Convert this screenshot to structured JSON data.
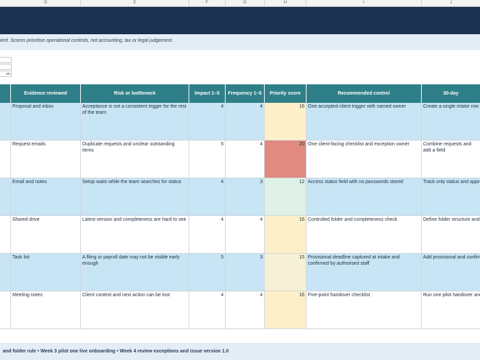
{
  "column_letters": [
    "D",
    "E",
    "F",
    "G",
    "H",
    "I",
    "J"
  ],
  "note": "ient. Scores prioritise operational controls, not accounting, tax or legal judgement.",
  "mini_boxes": [
    "",
    "",
    "an"
  ],
  "headers": {
    "evidence": "Evidence reviewed",
    "risk": "Risk or bottleneck",
    "impact": "Impact 1–5",
    "frequency": "Frequency 1–5",
    "priority": "Priority score",
    "control": "Recommended control",
    "thirty_day": "30-day"
  },
  "rows": [
    {
      "evidence": "Proposal and inbox",
      "risk": "Acceptance is not a consistent trigger for the rest of the team",
      "impact": "4",
      "frequency": "4",
      "priority": "16",
      "priority_color": "#fdf0c8",
      "control": "One accepted-client trigger with named owner",
      "thirty_day": "Create a single intake row wh"
    },
    {
      "evidence": "Request emails",
      "risk": "Duplicate requests and unclear outstanding items",
      "impact": "5",
      "frequency": "4",
      "priority": "20",
      "priority_color": "#e08a80",
      "control": "One client-facing checklist and exception owner",
      "thirty_day": "Combine requests and add a field"
    },
    {
      "evidence": "Email and notes",
      "risk": "Setup waits while the team searches for status",
      "impact": "4",
      "frequency": "3",
      "priority": "12",
      "priority_color": "#dff0e6",
      "control": "Access status field with no passwords stored",
      "thirty_day": "Track only status and approv"
    },
    {
      "evidence": "Shared drive",
      "risk": "Latest version and completeness are hard to see",
      "impact": "4",
      "frequency": "4",
      "priority": "16",
      "priority_color": "#fdf0c8",
      "control": "Controlled folder and completeness check",
      "thirty_day": "Define folder structure and na"
    },
    {
      "evidence": "Task list",
      "risk": "A filing or payroll date may not be visible early enough",
      "impact": "5",
      "frequency": "3",
      "priority": "15",
      "priority_color": "#f6f1d6",
      "control": "Provisional deadline captured at intake and confirmed by authorised staff",
      "thirty_day": "Add provisional and confirme"
    },
    {
      "evidence": "Meeting notes",
      "risk": "Client context and next action can be lost",
      "impact": "4",
      "frequency": "4",
      "priority": "16",
      "priority_color": "#fdf0c8",
      "control": "Five-point handover checklist",
      "thirty_day": "Run one pilot handover and a"
    }
  ],
  "footer": "and folder rule  •  Week 3 pilot one live onboarding  •  Week 4 review exceptions and issue version 1.0"
}
